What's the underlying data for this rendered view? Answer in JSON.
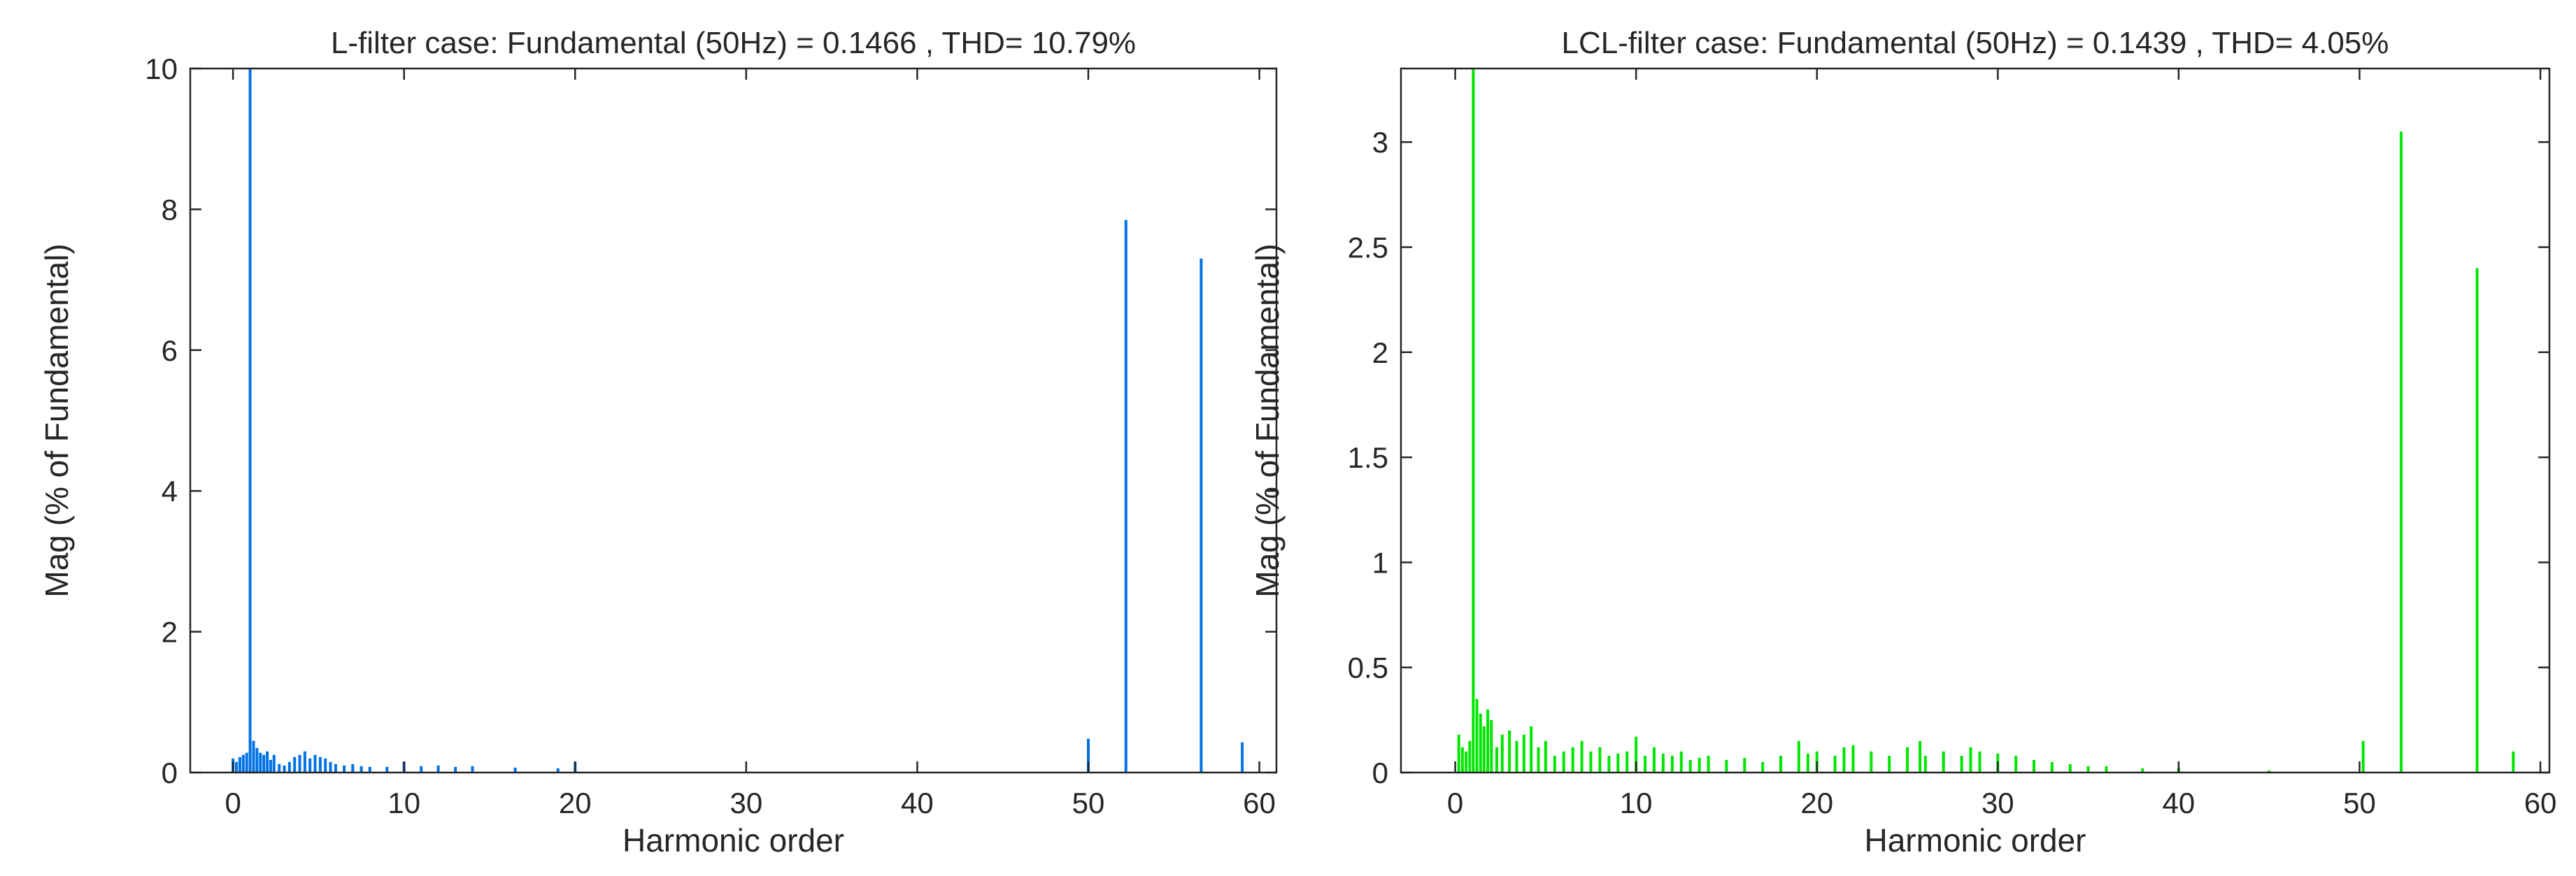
{
  "chart_data": [
    {
      "type": "bar",
      "title": "L-filter case: Fundamental (50Hz) = 0.1466 , THD= 10.79%",
      "xlabel": "Harmonic order",
      "ylabel": "Mag (% of Fundamental)",
      "xlim": [
        -2.5,
        61
      ],
      "ylim": [
        0,
        10
      ],
      "xticks": [
        0,
        10,
        20,
        30,
        40,
        50,
        60
      ],
      "yticks": [
        0,
        2,
        4,
        6,
        8,
        10
      ],
      "ytick_labels": [
        "0",
        "2",
        "4",
        "6",
        "8",
        "10"
      ],
      "color": "#0072e6",
      "grid": false,
      "x": [
        0,
        0.2,
        0.4,
        0.6,
        0.8,
        1.0,
        1.2,
        1.4,
        1.6,
        1.8,
        2.0,
        2.2,
        2.4,
        2.7,
        3.0,
        3.3,
        3.6,
        3.9,
        4.2,
        4.5,
        4.8,
        5.1,
        5.4,
        5.7,
        6.0,
        6.5,
        7.0,
        7.5,
        8.0,
        9.0,
        10.0,
        11.0,
        12.0,
        13.0,
        14.0,
        16.5,
        19.0,
        20.0,
        50.0,
        52.2,
        56.6,
        59.0
      ],
      "values": [
        0.2,
        0.15,
        0.22,
        0.25,
        0.28,
        10.0,
        0.45,
        0.35,
        0.28,
        0.25,
        0.3,
        0.18,
        0.25,
        0.12,
        0.1,
        0.15,
        0.22,
        0.25,
        0.3,
        0.2,
        0.25,
        0.22,
        0.2,
        0.15,
        0.12,
        0.1,
        0.12,
        0.09,
        0.08,
        0.08,
        0.15,
        0.09,
        0.1,
        0.08,
        0.09,
        0.07,
        0.06,
        0.15,
        0.48,
        7.85,
        7.3,
        0.43
      ]
    },
    {
      "type": "bar",
      "title": "LCL-filter case: Fundamental (50Hz) = 0.1439 , THD= 4.05%",
      "xlabel": "Harmonic order",
      "ylabel": "Mag (% of Fundamental)",
      "xlim": [
        -3,
        60.5
      ],
      "ylim": [
        0,
        3.35
      ],
      "xticks": [
        0,
        10,
        20,
        30,
        40,
        50,
        60
      ],
      "yticks": [
        0,
        0.5,
        1,
        1.5,
        2,
        2.5,
        3
      ],
      "ytick_labels": [
        "0",
        "0.5",
        "1",
        "1.5",
        "2",
        "2.5",
        "3"
      ],
      "color": "#00e600",
      "grid": false,
      "x": [
        0.2,
        0.4,
        0.6,
        0.8,
        1.0,
        1.2,
        1.4,
        1.6,
        1.8,
        2.0,
        2.3,
        2.6,
        3.0,
        3.4,
        3.8,
        4.2,
        4.6,
        5.0,
        5.5,
        6.0,
        6.5,
        7.0,
        7.5,
        8.0,
        8.5,
        9.0,
        9.5,
        10.0,
        10.5,
        11.0,
        11.5,
        12.0,
        12.5,
        13.0,
        13.5,
        14.0,
        15.0,
        16.0,
        17.0,
        18.0,
        19.0,
        19.5,
        20.0,
        21.0,
        21.5,
        22.0,
        23.0,
        24.0,
        25.0,
        25.7,
        26.0,
        27.0,
        28.0,
        28.5,
        29.0,
        30.0,
        31.0,
        32.0,
        33.0,
        34.0,
        35.0,
        36.0,
        38.0,
        40.0,
        45.0,
        50.2,
        52.3,
        56.5,
        58.5
      ],
      "values": [
        0.18,
        0.12,
        0.1,
        0.15,
        3.35,
        0.35,
        0.28,
        0.22,
        0.3,
        0.25,
        0.12,
        0.18,
        0.2,
        0.15,
        0.18,
        0.22,
        0.12,
        0.15,
        0.08,
        0.1,
        0.12,
        0.15,
        0.1,
        0.12,
        0.08,
        0.09,
        0.1,
        0.17,
        0.08,
        0.12,
        0.09,
        0.08,
        0.1,
        0.06,
        0.07,
        0.08,
        0.06,
        0.07,
        0.05,
        0.08,
        0.15,
        0.09,
        0.1,
        0.08,
        0.12,
        0.13,
        0.1,
        0.08,
        0.12,
        0.15,
        0.08,
        0.1,
        0.08,
        0.12,
        0.1,
        0.09,
        0.08,
        0.06,
        0.05,
        0.04,
        0.03,
        0.03,
        0.02,
        0.02,
        0.01,
        0.15,
        3.05,
        2.4,
        0.1
      ]
    }
  ]
}
